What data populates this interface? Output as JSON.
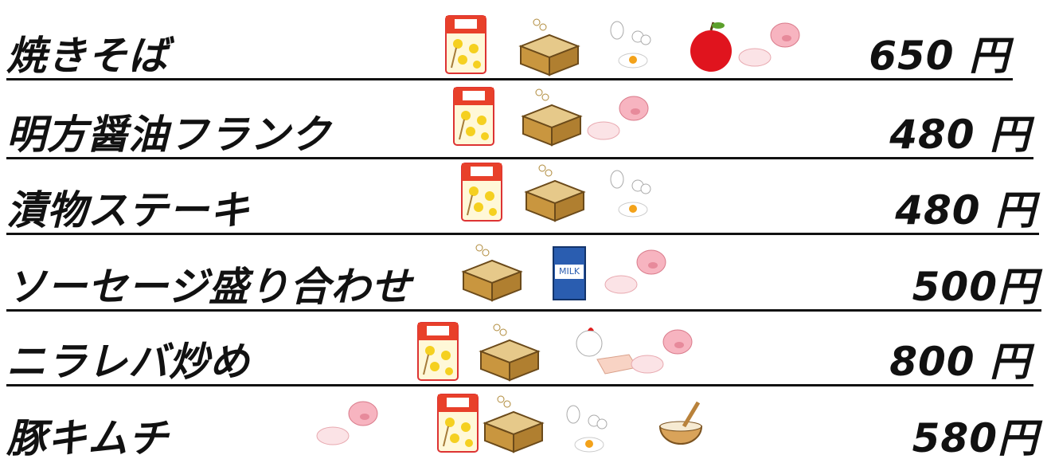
{
  "menu": {
    "items": [
      {
        "name": "焼きそば",
        "price": "650 円"
      },
      {
        "name": "明方醤油フランク",
        "price": "480 円"
      },
      {
        "name": "漬物ステーキ",
        "price": "480 円"
      },
      {
        "name": "ソーセージ盛り合わせ",
        "price": "500円"
      },
      {
        "name": "ニラレバ炒め",
        "price": "800 円"
      },
      {
        "name": "豚キムチ",
        "price": "580円"
      }
    ]
  }
}
